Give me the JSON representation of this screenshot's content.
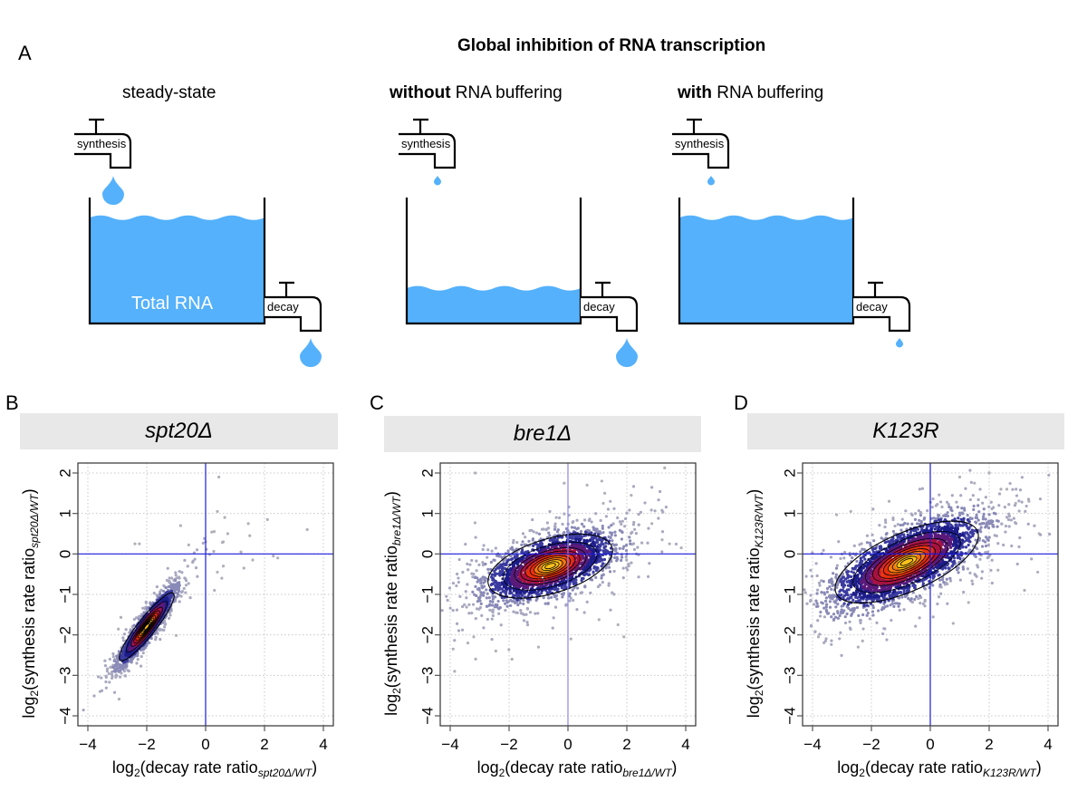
{
  "panel_a": {
    "letter": "A",
    "title": "Global inhibition of RNA transcription",
    "scenarios": [
      {
        "id": "steady",
        "title_bold": "",
        "title_rest": "steady-state",
        "water_level": 0.84,
        "synthesis_drop": "large",
        "decay_drop": "large",
        "tank_label": "Total RNA"
      },
      {
        "id": "without",
        "title_bold": "without",
        "title_rest": " RNA buffering",
        "water_level": 0.28,
        "synthesis_drop": "small",
        "decay_drop": "large",
        "tank_label": ""
      },
      {
        "id": "with",
        "title_bold": "with",
        "title_rest": " RNA buffering",
        "water_level": 0.84,
        "synthesis_drop": "small",
        "decay_drop": "small",
        "tank_label": ""
      }
    ],
    "synthesis_label": "synthesis",
    "decay_label": "decay",
    "water_color": "#55b1fb"
  },
  "chart_data": [
    {
      "type": "scatter",
      "panel": "B",
      "title": "spt20Δ",
      "xlabel": "log2(decay rate ratio spt20Δ/WT)",
      "ylabel": "log2(synthesis rate ratio spt20Δ/WT)",
      "subscript": "spt20Δ/WT",
      "xlim": [
        -4.3,
        4.3
      ],
      "ylim": [
        -4.2,
        2.5
      ],
      "xticks": [
        -4,
        -2,
        0,
        2,
        4
      ],
      "yticks": [
        -4,
        -3,
        -2,
        -1,
        0,
        1,
        2
      ],
      "xtick_labels": [
        "−4",
        "−2",
        "0",
        "2",
        "4"
      ],
      "ytick_labels": [
        "−4",
        "−3",
        "−2",
        "−1",
        "0",
        "1",
        "2"
      ],
      "grid": true,
      "reference_lines": {
        "x": 0,
        "y": 0
      },
      "density": {
        "center": [
          -2.0,
          -1.8
        ],
        "sx": 0.45,
        "sy": 0.45,
        "rho": 0.92,
        "n": 2200
      },
      "outliers": [
        [
          0.45,
          1.9
        ],
        [
          0.4,
          1.05
        ],
        [
          0.65,
          0.9
        ],
        [
          2.1,
          0.85
        ],
        [
          1.45,
          0.75
        ],
        [
          3.45,
          0.6
        ],
        [
          0.75,
          0.5
        ],
        [
          1.5,
          0.45
        ],
        [
          0.6,
          0.3
        ],
        [
          0.0,
          0.3
        ],
        [
          1.2,
          0.05
        ],
        [
          2.3,
          -0.05
        ],
        [
          2.45,
          -0.1
        ],
        [
          1.6,
          -0.15
        ],
        [
          0.6,
          -0.3
        ],
        [
          1.3,
          -0.35
        ],
        [
          0.4,
          -0.45
        ],
        [
          0.55,
          -0.6
        ],
        [
          0.3,
          -0.9
        ],
        [
          -2.4,
          0.25
        ],
        [
          -2.25,
          0.25
        ],
        [
          -0.85,
          0.7
        ]
      ],
      "zero_line_color": "#1a1adb"
    },
    {
      "type": "scatter",
      "panel": "C",
      "title": "bre1Δ",
      "xlabel": "log2(decay rate ratio bre1Δ/WT)",
      "ylabel": "log2(synthesis rate ratio bre1Δ/WT)",
      "subscript": "bre1Δ/WT",
      "xlim": [
        -4.3,
        4.3
      ],
      "ylim": [
        -4.2,
        2.5
      ],
      "xticks": [
        -4,
        -2,
        0,
        2,
        4
      ],
      "yticks": [
        -4,
        -3,
        -2,
        -1,
        0,
        1,
        2
      ],
      "xtick_labels": [
        "−4",
        "−2",
        "0",
        "2",
        "4"
      ],
      "ytick_labels": [
        "−4",
        "−3",
        "−2",
        "−1",
        "0",
        "1",
        "2"
      ],
      "grid": true,
      "reference_lines": {
        "x": 0,
        "y": 0
      },
      "density": {
        "center": [
          -0.6,
          -0.3
        ],
        "sx": 1.05,
        "sy": 0.42,
        "rho": 0.55,
        "n": 2600
      },
      "outliers": [
        [
          -3.15,
          2.0
        ],
        [
          1.15,
          1.8
        ],
        [
          0.65,
          1.7
        ],
        [
          1.25,
          1.5
        ],
        [
          2.15,
          1.45
        ],
        [
          1.2,
          1.25
        ],
        [
          2.85,
          0.75
        ],
        [
          3.2,
          0.35
        ],
        [
          3.45,
          0.25
        ],
        [
          3.85,
          0.15
        ],
        [
          -3.9,
          -2.35
        ],
        [
          -3.85,
          -2.9
        ],
        [
          -2.45,
          -2.4
        ],
        [
          -1.9,
          -2.6
        ],
        [
          -1.0,
          -2.3
        ],
        [
          1.9,
          -2.05
        ],
        [
          0.1,
          -2.1
        ],
        [
          1.7,
          -1.75
        ],
        [
          -3.2,
          -2.05
        ],
        [
          -3.4,
          -2.2
        ]
      ],
      "zero_line_color": "#1a1adb",
      "vline_color": "#8888f0"
    },
    {
      "type": "scatter",
      "panel": "D",
      "title": "K123R",
      "xlabel": "log2(decay rate ratio K123R/WT)",
      "ylabel": "log2(synthesis rate ratio K123R/WT)",
      "subscript": "K123R/WT",
      "xlim": [
        -4.3,
        4.3
      ],
      "ylim": [
        -4.2,
        2.5
      ],
      "xticks": [
        -4,
        -2,
        0,
        2,
        4
      ],
      "yticks": [
        -4,
        -3,
        -2,
        -1,
        0,
        1,
        2
      ],
      "xtick_labels": [
        "−4",
        "−2",
        "0",
        "2",
        "4"
      ],
      "ytick_labels": [
        "−4",
        "−3",
        "−2",
        "−1",
        "0",
        "1",
        "2"
      ],
      "grid": true,
      "reference_lines": {
        "x": 0,
        "y": 0
      },
      "density": {
        "center": [
          -0.8,
          -0.2
        ],
        "sx": 1.2,
        "sy": 0.55,
        "rho": 0.7,
        "n": 3200
      },
      "outliers": [
        [
          2.0,
          2.0
        ],
        [
          1.0,
          1.9
        ],
        [
          1.5,
          1.75
        ],
        [
          2.4,
          1.6
        ],
        [
          2.6,
          1.6
        ],
        [
          3.35,
          1.3
        ],
        [
          2.9,
          1.25
        ],
        [
          3.7,
          0.5
        ],
        [
          3.2,
          -0.9
        ],
        [
          3.65,
          -0.45
        ],
        [
          2.3,
          -0.4
        ],
        [
          1.3,
          -1.2
        ],
        [
          -3.8,
          -2.05
        ],
        [
          -2.45,
          -2.3
        ],
        [
          -2.3,
          -2.15
        ],
        [
          -1.4,
          1.3
        ],
        [
          -2.7,
          1.05
        ]
      ],
      "zero_line_color": "#1a1adb"
    }
  ]
}
